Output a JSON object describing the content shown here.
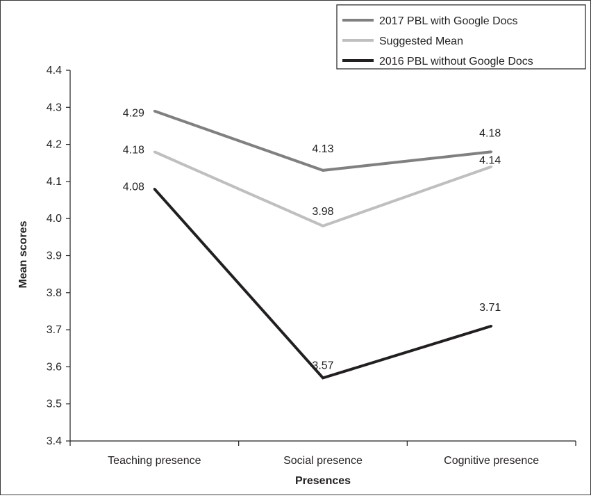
{
  "chart_data": {
    "type": "line",
    "xlabel": "Presences",
    "ylabel": "Mean scores",
    "categories": [
      "Teaching presence",
      "Social presence",
      "Cognitive presence"
    ],
    "ylim": [
      3.4,
      4.4
    ],
    "yticks": [
      "3.4",
      "3.5",
      "3.6",
      "3.7",
      "3.8",
      "3.9",
      "4.0",
      "4.1",
      "4.2",
      "4.3",
      "4.4"
    ],
    "grid": false,
    "legend_position": "top-right",
    "series": [
      {
        "name": "2017  PBL with Google Docs",
        "color": "#808080",
        "values": [
          4.29,
          4.13,
          4.18
        ],
        "labels": [
          "4.29",
          "4.13",
          "4.18"
        ]
      },
      {
        "name": "Suggested Mean",
        "color": "#bfbfbf",
        "values": [
          4.18,
          3.98,
          4.14
        ],
        "labels": [
          "4.18",
          "3.98",
          "4.14"
        ]
      },
      {
        "name": "2016  PBL without Google Docs",
        "color": "#231f20",
        "values": [
          4.08,
          3.57,
          3.71
        ],
        "labels": [
          "4.08",
          "3.57",
          "3.71"
        ]
      }
    ]
  }
}
